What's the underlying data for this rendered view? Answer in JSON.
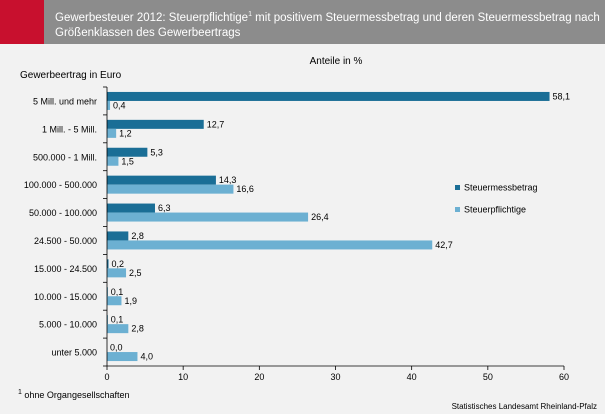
{
  "header": {
    "title_part1": "Gewerbesteuer 2012: Steuerpflichtige",
    "title_sup": "1",
    "title_part2": " mit positivem Steuermessbetrag und deren Steuermessbetrag nach Größenklassen des Gewerbeertrags"
  },
  "footer": {
    "footnote_sup": "1",
    "footnote_text": " ohne Organgesellschaften",
    "source": "Statistisches Landesamt Rheinland-Pfalz"
  },
  "chart_data": {
    "type": "bar",
    "orientation": "horizontal",
    "title": "Anteile in %",
    "ylabel": "Gewerbeertrag in Euro",
    "xlabel": "",
    "xlim": [
      0,
      60
    ],
    "xticks": [
      0,
      10,
      20,
      30,
      40,
      50,
      60
    ],
    "grid": false,
    "legend_position": "right",
    "categories": [
      "5 Mill. und mehr",
      "1 Mill. - 5 Mill.",
      "500.000 - 1 Mill.",
      "100.000 - 500.000",
      "50.000 - 100.000",
      "24.500 - 50.000",
      "15.000 - 24.500",
      "10.000 - 15.000",
      "5.000 - 10.000",
      "unter 5.000"
    ],
    "series": [
      {
        "name": "Steuermessbetrag",
        "color": "#1a6e96",
        "values": [
          58.1,
          12.7,
          5.3,
          14.3,
          6.3,
          2.8,
          0.2,
          0.1,
          0.1,
          0.0
        ],
        "labels": [
          "58,1",
          "12,7",
          "5,3",
          "14,3",
          "6,3",
          "2,8",
          "0,2",
          "0,1",
          "0,1",
          "0,0"
        ]
      },
      {
        "name": "Steuerpflichtige",
        "color": "#6cb0d2",
        "values": [
          0.4,
          1.2,
          1.5,
          16.6,
          26.4,
          42.7,
          2.5,
          1.9,
          2.8,
          4.0
        ],
        "labels": [
          "0,4",
          "1,2",
          "1,5",
          "16,6",
          "26,4",
          "42,7",
          "2,5",
          "1,9",
          "2,8",
          "4,0"
        ]
      }
    ]
  }
}
